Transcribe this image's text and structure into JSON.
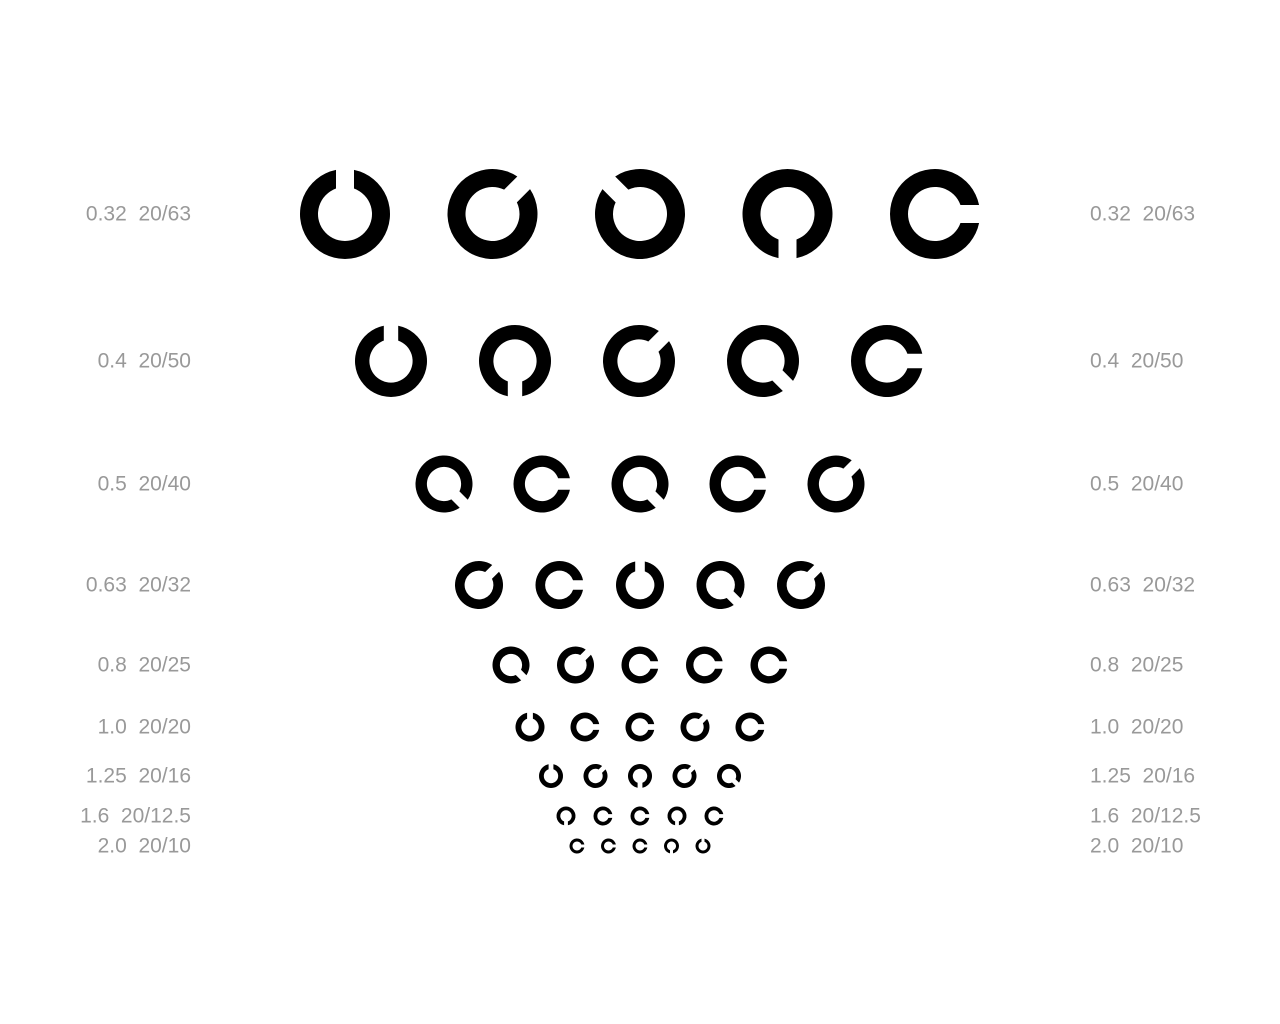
{
  "colors": {
    "background": "#ffffff",
    "optotype": "#000000",
    "label": "#999999"
  },
  "rows": [
    {
      "decimal": "0.32",
      "snellen": "20/63",
      "gaps_deg": [
        0,
        45,
        315,
        180,
        90
      ]
    },
    {
      "decimal": "0.4",
      "snellen": "20/50",
      "gaps_deg": [
        0,
        180,
        45,
        135,
        90
      ]
    },
    {
      "decimal": "0.5",
      "snellen": "20/40",
      "gaps_deg": [
        135,
        90,
        135,
        90,
        45
      ]
    },
    {
      "decimal": "0.63",
      "snellen": "20/32",
      "gaps_deg": [
        45,
        90,
        0,
        135,
        45
      ]
    },
    {
      "decimal": "0.8",
      "snellen": "20/25",
      "gaps_deg": [
        135,
        45,
        90,
        90,
        90
      ]
    },
    {
      "decimal": "1.0",
      "snellen": "20/20",
      "gaps_deg": [
        0,
        90,
        90,
        45,
        90
      ]
    },
    {
      "decimal": "1.25",
      "snellen": "20/16",
      "gaps_deg": [
        0,
        45,
        180,
        45,
        135
      ]
    },
    {
      "decimal": "1.6",
      "snellen": "20/12.5",
      "gaps_deg": [
        180,
        90,
        90,
        180,
        90
      ]
    },
    {
      "decimal": "2.0",
      "snellen": "20/10",
      "gaps_deg": [
        90,
        90,
        90,
        180,
        0
      ]
    }
  ]
}
